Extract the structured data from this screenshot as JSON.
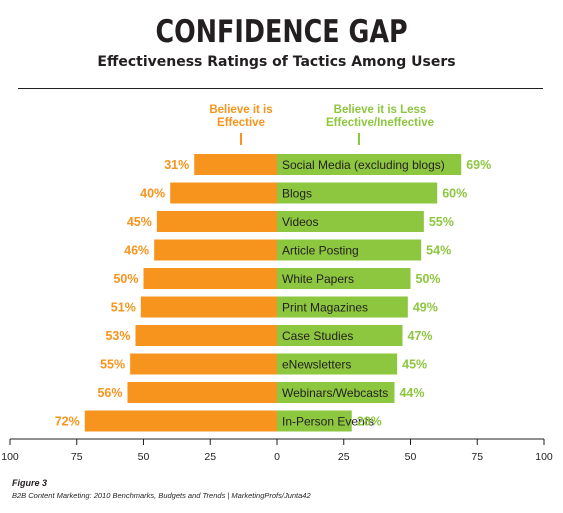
{
  "header": {
    "title": "CONFIDENCE GAP",
    "subtitle": "Effectiveness Ratings of Tactics Among Users"
  },
  "legend": {
    "left_label": "Believe it is Effective",
    "right_label": "Believe it is Less Effective/Ineffective"
  },
  "footer": {
    "figure": "Figure 3",
    "source": "B2B Content Marketing: 2010 Benchmarks, Budgets and Trends | MarketingProfs/Junta42"
  },
  "colors": {
    "effective": "#f7941d",
    "less_effective": "#8dc63f",
    "text": "#231f20"
  },
  "chart_data": {
    "type": "bar",
    "orientation": "horizontal-diverging",
    "categories": [
      "Social Media (excluding blogs)",
      "Blogs",
      "Videos",
      "Article Posting",
      "White Papers",
      "Print Magazines",
      "Case Studies",
      "eNewsletters",
      "Webinars/Webcasts",
      "In-Person Events"
    ],
    "series": [
      {
        "name": "Believe it is Effective",
        "values": [
          31,
          40,
          45,
          46,
          50,
          51,
          53,
          55,
          56,
          72
        ],
        "labels": [
          "31%",
          "40%",
          "45%",
          "46%",
          "50%",
          "51%",
          "53%",
          "55%",
          "56%",
          "72%"
        ]
      },
      {
        "name": "Believe it is Less Effective/Ineffective",
        "values": [
          69,
          60,
          55,
          54,
          50,
          49,
          47,
          45,
          44,
          28
        ],
        "labels": [
          "69%",
          "60%",
          "55%",
          "54%",
          "50%",
          "49%",
          "47%",
          "45%",
          "44%",
          "28%"
        ]
      }
    ],
    "xlim": [
      -100,
      100
    ],
    "ticks": [
      -100,
      -75,
      -50,
      -25,
      0,
      25,
      50,
      75,
      100
    ],
    "tick_labels": [
      "100",
      "75",
      "50",
      "25",
      "0",
      "25",
      "50",
      "75",
      "100"
    ],
    "grid": false,
    "legend_position": "top"
  }
}
